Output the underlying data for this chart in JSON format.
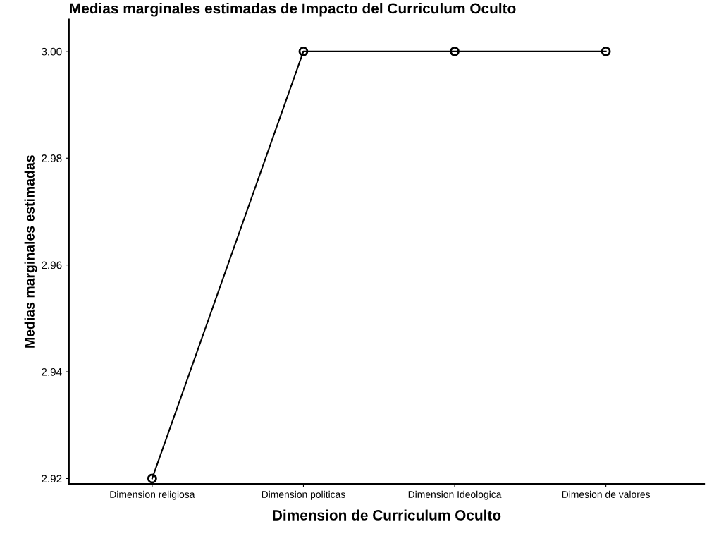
{
  "chart_data": {
    "type": "line",
    "title": "Medias marginales estimadas de Impacto del Curriculum Oculto",
    "xlabel": "Dimension de Curriculum Oculto",
    "ylabel": "Medias marginales estimadas",
    "categories": [
      "Dimension religiosa",
      "Dimension politicas",
      "Dimension Ideologica",
      "Dimesion de valores"
    ],
    "series": [
      {
        "color": "#000000",
        "values": [
          2.92,
          3.0,
          3.0,
          3.0
        ]
      }
    ],
    "ylim": [
      2.919,
      3.006
    ],
    "yticks": [
      {
        "value": 2.92,
        "label": "2.92"
      },
      {
        "value": 2.94,
        "label": "2.94"
      },
      {
        "value": 2.96,
        "label": "2.96"
      },
      {
        "value": 2.98,
        "label": "2.98"
      },
      {
        "value": 3.0,
        "label": "3.00"
      }
    ],
    "marker": "circle",
    "line_style": "solid",
    "grid": false,
    "legend": false
  }
}
